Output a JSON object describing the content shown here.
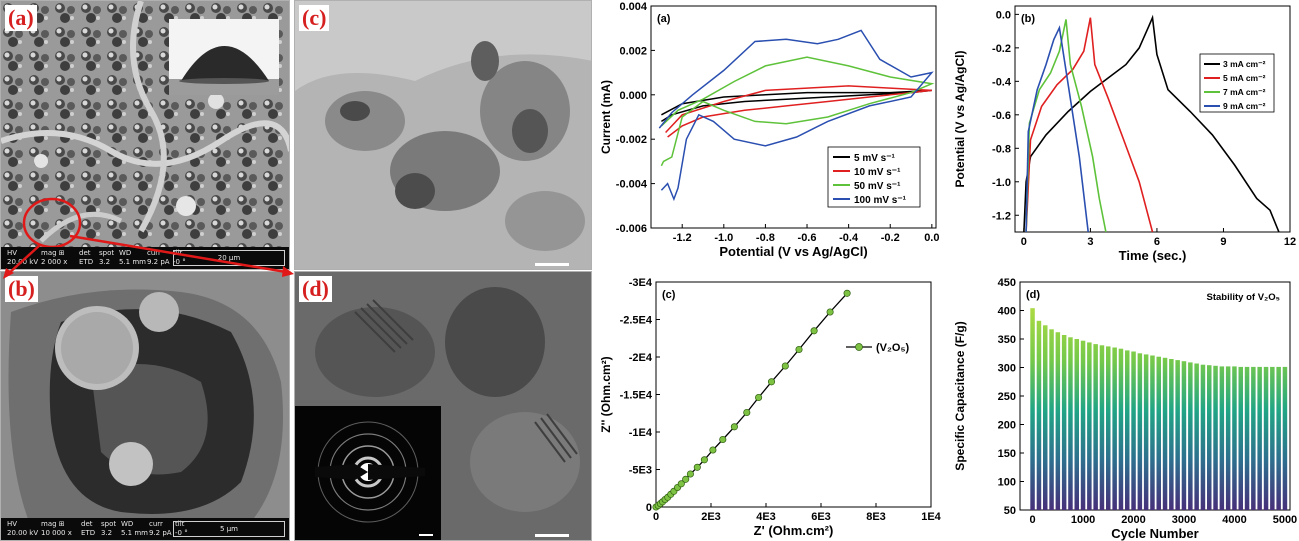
{
  "figure": {
    "sem_a": {
      "letter": "(a)",
      "bar": {
        "hv_label": "HV",
        "hv": "20.00 kV",
        "mag_label": "mag ⊞",
        "mag": "2 000 x",
        "det_label": "det",
        "det": "ETD",
        "spot_label": "spot",
        "spot": "3.2",
        "wd_label": "WD",
        "wd": "5.1 mm",
        "curr_label": "curr",
        "curr": "9.2 pA",
        "tilt_label": "tilt",
        "tilt": "-0 °",
        "scale": "20 μm"
      }
    },
    "sem_b": {
      "letter": "(b)",
      "bar": {
        "hv_label": "HV",
        "hv": "20.00 kV",
        "mag_label": "mag ⊞",
        "mag": "10 000 x",
        "det_label": "det",
        "det": "ETD",
        "spot_label": "spot",
        "spot": "3.2",
        "wd_label": "WD",
        "wd": "5.1 mm",
        "curr_label": "curr",
        "curr": "9.2 pA",
        "tilt_label": "tilt",
        "tilt": "-0 °",
        "scale": "5 μm"
      }
    },
    "tem_c": {
      "letter": "(c)"
    },
    "tem_d": {
      "letter": "(d)"
    }
  },
  "chart_data": [
    {
      "type": "line",
      "panel": "(a)",
      "xlabel": "Potential (V vs Ag/AgCl)",
      "ylabel": "Current (mA)",
      "xlim": [
        -1.35,
        0.02
      ],
      "ylim": [
        -0.006,
        0.004
      ],
      "xticks": [
        "-1.2",
        "-1.0",
        "-0.8",
        "-0.6",
        "-0.4",
        "-0.2",
        "0.0"
      ],
      "xtick_values": [
        -1.2,
        -1.0,
        -0.8,
        -0.6,
        -0.4,
        -0.2,
        0.0
      ],
      "yticks": [
        "-0.006",
        "-0.004",
        "-0.002",
        "0.000",
        "0.002",
        "0.004"
      ],
      "ytick_values": [
        -0.006,
        -0.004,
        -0.002,
        0.0,
        0.002,
        0.004
      ],
      "legend_placement": "lower-right",
      "series": [
        {
          "name": "5 mV s⁻¹",
          "color": "#000000",
          "x": [
            -1.3,
            -1.2,
            -1.0,
            -0.8,
            -0.6,
            -0.4,
            -0.2,
            0.0,
            -0.1,
            -0.3,
            -0.5,
            -0.7,
            -0.9,
            -1.1,
            -1.25,
            -1.3
          ],
          "y": [
            -0.0009,
            -0.0004,
            -0.0001,
            0.0,
            0.0001,
            0.0001,
            0.0001,
            0.0002,
            0.0001,
            0.0,
            -0.0001,
            -0.0002,
            -0.0003,
            -0.0005,
            -0.0009,
            -0.0012
          ]
        },
        {
          "name": "10 mV s⁻¹",
          "color": "#e02020",
          "x": [
            -1.28,
            -1.2,
            -1.0,
            -0.8,
            -0.6,
            -0.4,
            -0.2,
            0.0,
            -0.1,
            -0.3,
            -0.5,
            -0.7,
            -0.9,
            -1.1,
            -1.2,
            -1.27
          ],
          "y": [
            -0.0017,
            -0.0009,
            -0.0003,
            0.0002,
            0.0003,
            0.0004,
            0.0003,
            0.0002,
            0.0001,
            -0.0001,
            -0.0003,
            -0.0005,
            -0.0007,
            -0.001,
            -0.0014,
            -0.0019
          ]
        },
        {
          "name": "50 mV s⁻¹",
          "color": "#5ec23a",
          "x": [
            -1.3,
            -1.22,
            -1.1,
            -0.95,
            -0.8,
            -0.6,
            -0.4,
            -0.2,
            0.0,
            -0.1,
            -0.3,
            -0.5,
            -0.7,
            -0.85,
            -1.0,
            -1.1,
            -1.2,
            -1.25,
            -1.29,
            -1.3
          ],
          "y": [
            -0.0014,
            -0.0007,
            -0.0002,
            0.0006,
            0.0013,
            0.0017,
            0.0013,
            0.0008,
            0.0005,
            0.0001,
            -0.0004,
            -0.001,
            -0.0013,
            -0.0012,
            -0.0007,
            -0.0003,
            -0.001,
            -0.0028,
            -0.003,
            -0.0032
          ]
        },
        {
          "name": "100 mV s⁻¹",
          "color": "#2a4fb0",
          "x": [
            -1.31,
            -1.25,
            -1.15,
            -1.0,
            -0.85,
            -0.7,
            -0.55,
            -0.45,
            -0.34,
            -0.25,
            -0.1,
            0.0,
            -0.1,
            -0.3,
            -0.5,
            -0.65,
            -0.8,
            -0.95,
            -1.05,
            -1.12,
            -1.18,
            -1.22,
            -1.24,
            -1.27,
            -1.3
          ],
          "y": [
            -0.0015,
            -0.0008,
            0.0,
            0.0011,
            0.0024,
            0.0025,
            0.0023,
            0.0025,
            0.0029,
            0.0016,
            0.0008,
            0.001,
            -0.0001,
            -0.0005,
            -0.0012,
            -0.0019,
            -0.0023,
            -0.002,
            -0.0012,
            -0.0009,
            -0.002,
            -0.0042,
            -0.0047,
            -0.004,
            -0.0043
          ]
        }
      ]
    },
    {
      "type": "line",
      "panel": "(b)",
      "xlabel": "Time (sec.)",
      "ylabel": "Potential (V vs Ag/AgCl)",
      "xlim": [
        -0.4,
        12
      ],
      "ylim": [
        -1.3,
        0.05
      ],
      "xticks": [
        "0",
        "3",
        "6",
        "9",
        "12"
      ],
      "xtick_values": [
        0,
        3,
        6,
        9,
        12
      ],
      "yticks": [
        "0.0",
        "-0.2",
        "-0.4",
        "-0.6",
        "-0.8",
        "-1.0",
        "-1.2"
      ],
      "ytick_values": [
        0.0,
        -0.2,
        -0.4,
        -0.6,
        -0.8,
        -1.0,
        -1.2
      ],
      "legend_placement": "right",
      "series": [
        {
          "name": "3 mA cm⁻²",
          "color": "#000000",
          "x": [
            0,
            0.1,
            0.3,
            1.0,
            2.0,
            3.0,
            3.8,
            4.6,
            5.2,
            5.6,
            5.8,
            6.0,
            6.5,
            7.5,
            8.5,
            9.5,
            10.5,
            11.1,
            11.5
          ],
          "y": [
            -1.3,
            -1.0,
            -0.85,
            -0.72,
            -0.58,
            -0.46,
            -0.38,
            -0.3,
            -0.2,
            -0.08,
            -0.02,
            -0.24,
            -0.45,
            -0.58,
            -0.72,
            -0.9,
            -1.1,
            -1.17,
            -1.3
          ]
        },
        {
          "name": "5 mA cm⁻²",
          "color": "#e02020",
          "x": [
            0.1,
            0.3,
            0.8,
            1.5,
            2.2,
            2.7,
            3.0,
            3.2,
            3.8,
            4.5,
            5.2,
            5.8
          ],
          "y": [
            -1.3,
            -0.75,
            -0.55,
            -0.42,
            -0.33,
            -0.22,
            -0.02,
            -0.3,
            -0.5,
            -0.75,
            -1.0,
            -1.3
          ]
        },
        {
          "name": "7 mA cm⁻²",
          "color": "#5ec23a",
          "x": [
            0.1,
            0.25,
            0.7,
            1.2,
            1.6,
            1.9,
            2.1,
            2.6,
            3.1,
            3.4,
            3.7
          ],
          "y": [
            -1.3,
            -0.65,
            -0.45,
            -0.35,
            -0.22,
            -0.03,
            -0.3,
            -0.55,
            -0.85,
            -1.1,
            -1.3
          ]
        },
        {
          "name": "9 mA cm⁻²",
          "color": "#2a4fb0",
          "x": [
            0.1,
            0.2,
            0.6,
            1.0,
            1.35,
            1.6,
            2.0,
            2.5,
            2.9
          ],
          "y": [
            -1.3,
            -0.7,
            -0.45,
            -0.3,
            -0.15,
            -0.08,
            -0.42,
            -0.85,
            -1.3
          ]
        }
      ]
    },
    {
      "type": "scatter",
      "panel": "(c)",
      "xlabel": "Z' (Ohm.cm²)",
      "ylabel": "Z'' (Ohm.cm²)",
      "xlim": [
        0,
        10000
      ],
      "ylim": [
        0,
        30000
      ],
      "xticks": [
        "0",
        "2E3",
        "4E3",
        "6E3",
        "8E3",
        "1E4"
      ],
      "xtick_values": [
        0,
        2000,
        4000,
        6000,
        8000,
        10000
      ],
      "yticks": [
        "0",
        "-5E3",
        "-1E4",
        "-1.5E4",
        "-2E4",
        "-2.5E4",
        "-3E4"
      ],
      "ytick_values": [
        0,
        5000,
        10000,
        15000,
        20000,
        25000,
        30000
      ],
      "legend_placement": "top-right",
      "series": [
        {
          "name": "(V₂O₅)",
          "color": "#7dc242",
          "x": [
            0,
            80,
            160,
            240,
            330,
            430,
            540,
            650,
            780,
            920,
            1080,
            1250,
            1500,
            1760,
            2070,
            2430,
            2850,
            3300,
            3730,
            4200,
            4700,
            5200,
            5750,
            6330,
            6950
          ],
          "y": [
            0,
            200,
            450,
            700,
            1000,
            1300,
            1700,
            2100,
            2600,
            3100,
            3700,
            4400,
            5300,
            6300,
            7600,
            9000,
            10700,
            12600,
            14600,
            16700,
            18800,
            21000,
            23500,
            26000,
            28500
          ]
        }
      ]
    },
    {
      "type": "bar",
      "panel": "(d)",
      "title": "Stability of V₂O₅",
      "xlabel": "Cycle Number",
      "ylabel": "Specific Capacitance (F/g)",
      "xlim": [
        -250,
        5100
      ],
      "ylim": [
        50,
        450
      ],
      "xticks": [
        "0",
        "1000",
        "2000",
        "3000",
        "4000",
        "5000"
      ],
      "xtick_values": [
        0,
        1000,
        2000,
        3000,
        4000,
        5000
      ],
      "yticks": [
        "50",
        "100",
        "150",
        "200",
        "250",
        "300",
        "350",
        "400",
        "450"
      ],
      "ytick_values": [
        50,
        100,
        150,
        200,
        250,
        300,
        350,
        400,
        450
      ],
      "x": [
        0,
        125,
        250,
        375,
        500,
        625,
        750,
        875,
        1000,
        1125,
        1250,
        1375,
        1500,
        1625,
        1750,
        1875,
        2000,
        2125,
        2250,
        2375,
        2500,
        2625,
        2750,
        2875,
        3000,
        3125,
        3250,
        3375,
        3500,
        3625,
        3750,
        3875,
        4000,
        4125,
        4250,
        4375,
        4500,
        4625,
        4750,
        4875,
        5000
      ],
      "values": [
        404,
        382,
        374,
        367,
        362,
        357,
        353,
        350,
        347,
        344,
        341,
        339,
        337,
        335,
        333,
        330,
        328,
        325,
        323,
        321,
        319,
        317,
        315,
        313,
        311,
        309,
        307,
        305,
        304,
        303,
        302,
        302,
        302,
        301,
        301,
        301,
        301,
        301,
        301,
        301,
        301
      ]
    }
  ]
}
